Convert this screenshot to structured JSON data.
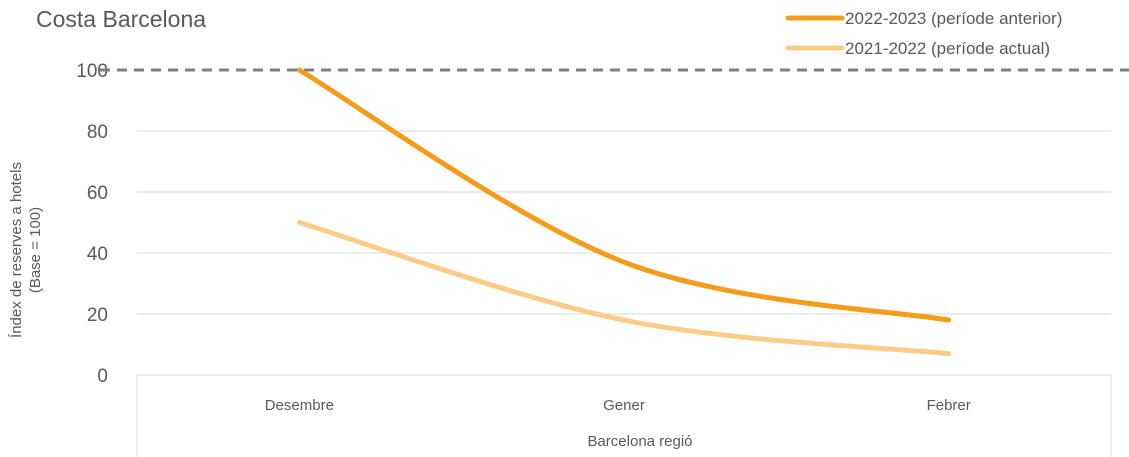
{
  "chart_data": {
    "type": "line",
    "title": "Costa Barcelona",
    "ylabel_lines": [
      "Índex de reserves a hotels",
      "(Base = 100)"
    ],
    "xlabel": "Barcelona regió",
    "categories": [
      "Desembre",
      "Gener",
      "Febrer"
    ],
    "ylim": [
      0,
      100
    ],
    "yticks": [
      0,
      20,
      40,
      60,
      80,
      100
    ],
    "grid": true,
    "legend_position": "top-right",
    "reference_line": {
      "value": 100,
      "style": "dashed",
      "color": "#7f7f7f"
    },
    "series": [
      {
        "name": "2022-2023 (període anterior)",
        "values": [
          100,
          37,
          18
        ],
        "color": "#f59c1a",
        "width": 5
      },
      {
        "name": "2021-2022 (període actual)",
        "values": [
          50,
          18,
          7
        ],
        "color": "#fbcc88",
        "width": 5
      }
    ]
  }
}
